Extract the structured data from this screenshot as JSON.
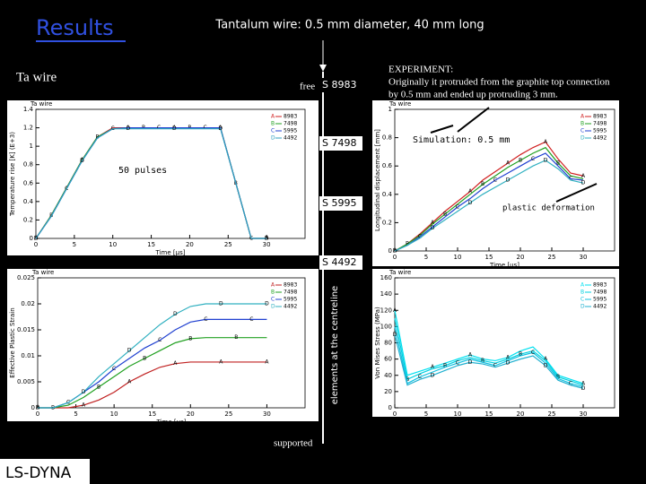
{
  "title": "Results",
  "subtitle": "Tantalum wire: 0.5 mm diameter, 40 mm long",
  "panel_title": "Ta wire",
  "free_label": "free",
  "supported_label": "supported",
  "centreline_label": "elements at the centreline",
  "element_labels": [
    "S 8983",
    "S 7498",
    "S 5995",
    "S 4492"
  ],
  "experiment_note": [
    "EXPERIMENT:",
    "Originally it protruded from the graphite top connection",
    "by 0.5 mm and ended up protruding 3 mm."
  ],
  "simulation_note": "Simulation: 0.5 mm",
  "pulses_note": "50 pulses",
  "plastic_note": "plastic deformation",
  "footer": "LS-DYNA",
  "chart_data": [
    {
      "type": "line",
      "title": "Ta wire",
      "xlabel": "Time [μs]",
      "ylabel": "Temperature rise [K] (E+3)",
      "x": [
        0,
        2,
        4,
        6,
        8,
        10,
        12,
        14,
        16,
        18,
        20,
        22,
        24,
        26,
        28,
        30
      ],
      "xlim": [
        0,
        35
      ],
      "xticks": [
        0,
        5,
        10,
        15,
        20,
        25,
        30
      ],
      "ylim": [
        0,
        1.4
      ],
      "yticks": [
        0,
        0.2,
        0.4,
        0.6,
        0.8,
        1,
        1.2,
        1.4
      ],
      "series": [
        {
          "name": "8983",
          "marker": "A",
          "color": "#d02020",
          "values": [
            0,
            0.25,
            0.55,
            0.85,
            1.1,
            1.2,
            1.2,
            1.2,
            1.2,
            1.2,
            1.2,
            1.2,
            1.2,
            0.6,
            0,
            0
          ]
        },
        {
          "name": "7498",
          "marker": "B",
          "color": "#20a020",
          "values": [
            0,
            0.25,
            0.55,
            0.85,
            1.1,
            1.19,
            1.2,
            1.2,
            1.2,
            1.2,
            1.2,
            1.2,
            1.2,
            0.6,
            0,
            0
          ]
        },
        {
          "name": "5995",
          "marker": "C",
          "color": "#2040d0",
          "values": [
            0,
            0.24,
            0.54,
            0.84,
            1.09,
            1.19,
            1.2,
            1.2,
            1.2,
            1.2,
            1.2,
            1.2,
            1.2,
            0.6,
            0,
            0
          ]
        },
        {
          "name": "4492",
          "marker": "D",
          "color": "#30a0c0",
          "values": [
            0,
            0.24,
            0.54,
            0.84,
            1.09,
            1.19,
            1.19,
            1.19,
            1.19,
            1.19,
            1.19,
            1.19,
            1.19,
            0.6,
            0,
            0
          ]
        }
      ]
    },
    {
      "type": "line",
      "title": "Ta wire",
      "xlabel": "Time [μs]",
      "ylabel": "Longitudinal displacement [mm]",
      "x": [
        0,
        2,
        4,
        6,
        8,
        10,
        12,
        14,
        16,
        18,
        20,
        22,
        24,
        26,
        28,
        30
      ],
      "xlim": [
        0,
        35
      ],
      "xticks": [
        0,
        5,
        10,
        15,
        20,
        25,
        30
      ],
      "ylim": [
        0,
        1
      ],
      "yticks": [
        0,
        0.2,
        0.4,
        0.6,
        0.8,
        1
      ],
      "series": [
        {
          "name": "8983",
          "marker": "A",
          "color": "#d02020",
          "values": [
            0,
            0.05,
            0.12,
            0.2,
            0.28,
            0.35,
            0.42,
            0.5,
            0.56,
            0.62,
            0.68,
            0.73,
            0.77,
            0.65,
            0.55,
            0.53
          ]
        },
        {
          "name": "7498",
          "marker": "B",
          "color": "#20a020",
          "values": [
            0,
            0.05,
            0.11,
            0.19,
            0.26,
            0.33,
            0.4,
            0.47,
            0.53,
            0.59,
            0.64,
            0.69,
            0.73,
            0.62,
            0.53,
            0.51
          ]
        },
        {
          "name": "5995",
          "marker": "C",
          "color": "#2040d0",
          "values": [
            0,
            0.04,
            0.1,
            0.17,
            0.24,
            0.31,
            0.37,
            0.44,
            0.5,
            0.55,
            0.6,
            0.65,
            0.69,
            0.6,
            0.51,
            0.5
          ]
        },
        {
          "name": "4492",
          "marker": "D",
          "color": "#30b0c0",
          "values": [
            0,
            0.04,
            0.09,
            0.16,
            0.22,
            0.28,
            0.34,
            0.4,
            0.45,
            0.5,
            0.55,
            0.6,
            0.64,
            0.58,
            0.5,
            0.48
          ]
        }
      ]
    },
    {
      "type": "line",
      "title": "Ta wire",
      "xlabel": "Time [μs]",
      "ylabel": "Effective Plastic Strain",
      "x": [
        0,
        2,
        4,
        6,
        8,
        10,
        12,
        14,
        16,
        18,
        20,
        22,
        24,
        26,
        28,
        30
      ],
      "xlim": [
        0,
        35
      ],
      "xticks": [
        0,
        5,
        10,
        15,
        20,
        25,
        30
      ],
      "ylim": [
        0,
        0.025
      ],
      "yticks": [
        0,
        0.005,
        0.01,
        0.015,
        0.02,
        0.025
      ],
      "series": [
        {
          "name": "8983",
          "marker": "A",
          "color": "#c02020",
          "values": [
            0,
            0,
            0,
            0.0005,
            0.0015,
            0.003,
            0.005,
            0.0065,
            0.0078,
            0.0085,
            0.0088,
            0.0088,
            0.0088,
            0.0088,
            0.0088,
            0.0088
          ]
        },
        {
          "name": "7498",
          "marker": "B",
          "color": "#20a020",
          "values": [
            0,
            0,
            0.0005,
            0.002,
            0.004,
            0.006,
            0.008,
            0.0095,
            0.011,
            0.0125,
            0.0133,
            0.0135,
            0.0135,
            0.0135,
            0.0135,
            0.0135
          ]
        },
        {
          "name": "5995",
          "marker": "C",
          "color": "#2040d0",
          "values": [
            0,
            0,
            0.001,
            0.003,
            0.005,
            0.0075,
            0.0095,
            0.0115,
            0.013,
            0.015,
            0.0165,
            0.017,
            0.017,
            0.017,
            0.017,
            0.017
          ]
        },
        {
          "name": "4492",
          "marker": "D",
          "color": "#30b0c0",
          "values": [
            0,
            0,
            0.001,
            0.003,
            0.006,
            0.0085,
            0.011,
            0.0135,
            0.016,
            0.018,
            0.0195,
            0.02,
            0.02,
            0.02,
            0.02,
            0.02
          ]
        }
      ]
    },
    {
      "type": "line",
      "title": "Ta wire",
      "xlabel": "Time [μs]",
      "ylabel": "Von Mises Stress (MPa)",
      "x": [
        0,
        2,
        4,
        6,
        8,
        10,
        12,
        14,
        16,
        18,
        20,
        22,
        24,
        26,
        28,
        30
      ],
      "xlim": [
        0,
        35
      ],
      "xticks": [
        0,
        5,
        10,
        15,
        20,
        25,
        30
      ],
      "ylim": [
        0,
        160
      ],
      "yticks": [
        0,
        20,
        40,
        60,
        80,
        100,
        120,
        140,
        160
      ],
      "series": [
        {
          "name": "8983",
          "marker": "A",
          "color": "#00e0f0",
          "values": [
            120,
            40,
            45,
            50,
            55,
            60,
            65,
            60,
            58,
            62,
            70,
            75,
            60,
            40,
            35,
            30
          ]
        },
        {
          "name": "7498",
          "marker": "B",
          "color": "#00d0e0",
          "values": [
            110,
            35,
            42,
            48,
            52,
            58,
            62,
            58,
            55,
            60,
            66,
            70,
            58,
            38,
            33,
            28
          ]
        },
        {
          "name": "5995",
          "marker": "C",
          "color": "#10c0e0",
          "values": [
            100,
            30,
            38,
            44,
            50,
            55,
            60,
            56,
            52,
            58,
            64,
            68,
            55,
            36,
            30,
            26
          ]
        },
        {
          "name": "4492",
          "marker": "D",
          "color": "#20b0d0",
          "values": [
            90,
            28,
            35,
            40,
            46,
            52,
            56,
            54,
            50,
            55,
            60,
            64,
            52,
            34,
            28,
            24
          ]
        }
      ]
    }
  ]
}
